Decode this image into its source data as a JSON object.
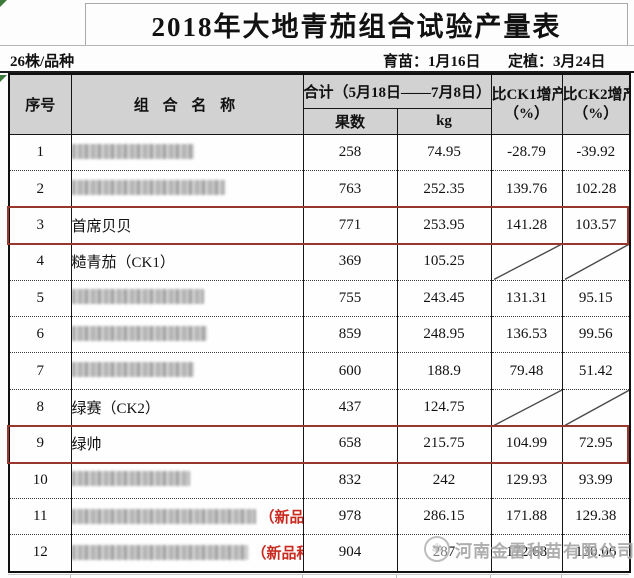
{
  "title": "2018年大地青茄组合试验产量表",
  "info": {
    "plants_per_variety": "26株/品种",
    "seedling_date": "育苗：1月16日",
    "planting_date": "定植：3月24日"
  },
  "table": {
    "headers": {
      "index": "序号",
      "name": "组 合 名 称",
      "total_span": "合计（5月18日——7月8日）",
      "fruit_count": "果数",
      "weight": "kg",
      "vs_ck1_line1": "比CK1增产",
      "vs_ck1_line2": "（%）",
      "vs_ck2_line1": "比CK2增产",
      "vs_ck2_line2": "（%）"
    },
    "new_variety_label": "（新品种）",
    "rows": [
      {
        "index": "1",
        "name": "",
        "obscured": true,
        "blur_width": 122,
        "fruit_count": "258",
        "kg": "74.95",
        "vs_ck1": "-28.79",
        "vs_ck2": "-39.92",
        "highlight": false,
        "slash": false,
        "new_variety": false
      },
      {
        "index": "2",
        "name": "",
        "obscured": true,
        "blur_width": 153,
        "fruit_count": "763",
        "kg": "252.35",
        "vs_ck1": "139.76",
        "vs_ck2": "102.28",
        "highlight": false,
        "slash": false,
        "new_variety": false
      },
      {
        "index": "3",
        "name": "首席贝贝",
        "obscured": false,
        "blur_width": 0,
        "fruit_count": "771",
        "kg": "253.95",
        "vs_ck1": "141.28",
        "vs_ck2": "103.57",
        "highlight": true,
        "slash": false,
        "new_variety": false
      },
      {
        "index": "4",
        "name": "糙青茄（CK1）",
        "obscured": false,
        "blur_width": 0,
        "fruit_count": "369",
        "kg": "105.25",
        "vs_ck1": "",
        "vs_ck2": "",
        "highlight": false,
        "slash": true,
        "new_variety": false
      },
      {
        "index": "5",
        "name": "",
        "obscured": true,
        "blur_width": 132,
        "fruit_count": "755",
        "kg": "243.45",
        "vs_ck1": "131.31",
        "vs_ck2": "95.15",
        "highlight": false,
        "slash": false,
        "new_variety": false
      },
      {
        "index": "6",
        "name": "",
        "obscured": true,
        "blur_width": 135,
        "fruit_count": "859",
        "kg": "248.95",
        "vs_ck1": "136.53",
        "vs_ck2": "99.56",
        "highlight": false,
        "slash": false,
        "new_variety": false
      },
      {
        "index": "7",
        "name": "",
        "obscured": true,
        "blur_width": 122,
        "fruit_count": "600",
        "kg": "188.9",
        "vs_ck1": "79.48",
        "vs_ck2": "51.42",
        "highlight": false,
        "slash": false,
        "new_variety": false
      },
      {
        "index": "8",
        "name": "绿赛（CK2）",
        "obscured": false,
        "blur_width": 0,
        "fruit_count": "437",
        "kg": "124.75",
        "vs_ck1": "",
        "vs_ck2": "",
        "highlight": false,
        "slash": true,
        "new_variety": false
      },
      {
        "index": "9",
        "name": "绿帅",
        "obscured": false,
        "blur_width": 0,
        "fruit_count": "658",
        "kg": "215.75",
        "vs_ck1": "104.99",
        "vs_ck2": "72.95",
        "highlight": true,
        "slash": false,
        "new_variety": false
      },
      {
        "index": "10",
        "name": "",
        "obscured": true,
        "blur_width": 118,
        "fruit_count": "832",
        "kg": "242",
        "vs_ck1": "129.93",
        "vs_ck2": "93.99",
        "highlight": false,
        "slash": false,
        "new_variety": false
      },
      {
        "index": "11",
        "name": "",
        "obscured": true,
        "blur_width": 184,
        "fruit_count": "978",
        "kg": "286.15",
        "vs_ck1": "171.88",
        "vs_ck2": "129.38",
        "highlight": false,
        "slash": false,
        "new_variety": true
      },
      {
        "index": "12",
        "name": "",
        "obscured": true,
        "blur_width": 176,
        "fruit_count": "904",
        "kg": "287",
        "vs_ck1": "172.68",
        "vs_ck2": "130.06",
        "highlight": false,
        "slash": false,
        "new_variety": true
      }
    ]
  },
  "watermark": {
    "logo": "flower-seal-icon",
    "company": "河南金雷种苗有限公司"
  },
  "colors": {
    "highlight_border": "#99362e",
    "new_variety_red": "#c92a1f",
    "header_bg": "#d2d2d2",
    "watermark_gray": "#a3a3a3",
    "excel_triangle_green": "#3c7a3c"
  }
}
